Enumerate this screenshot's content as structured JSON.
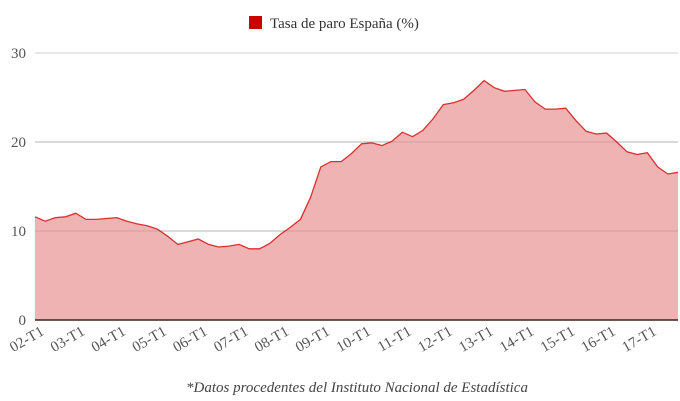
{
  "chart_data": {
    "type": "area",
    "title": "",
    "legend": [
      {
        "label": "Tasa de paro España (%)",
        "color": "#cc0000"
      }
    ],
    "legend_placement": "top-center",
    "xlabel": "",
    "ylabel": "",
    "ylim": [
      0,
      30
    ],
    "yticks": [
      0,
      10,
      20,
      30
    ],
    "grid": true,
    "x_tick_labels": [
      "02-T1",
      "03-T1",
      "04-T1",
      "05-T1",
      "06-T1",
      "07-T1",
      "08-T1",
      "09-T1",
      "10-T1",
      "11-T1",
      "12-T1",
      "13-T1",
      "14-T1",
      "15-T1",
      "16-T1",
      "17-T1"
    ],
    "series": [
      {
        "name": "Tasa de paro España (%)",
        "line_color": "#d93030",
        "fill_color": "#efb3b3",
        "values": [
          11.6,
          11.1,
          11.5,
          11.6,
          12.0,
          11.3,
          11.3,
          11.4,
          11.5,
          11.1,
          10.8,
          10.6,
          10.2,
          9.4,
          8.5,
          8.8,
          9.1,
          8.5,
          8.2,
          8.3,
          8.5,
          8.0,
          8.0,
          8.6,
          9.6,
          10.4,
          11.3,
          13.8,
          17.2,
          17.8,
          17.8,
          18.7,
          19.8,
          19.9,
          19.6,
          20.1,
          21.1,
          20.6,
          21.3,
          22.6,
          24.2,
          24.4,
          24.8,
          25.8,
          26.9,
          26.1,
          25.7,
          25.8,
          25.9,
          24.5,
          23.7,
          23.7,
          23.8,
          22.4,
          21.2,
          20.9,
          21.0,
          20.0,
          18.9,
          18.6,
          18.8,
          17.2,
          16.4,
          16.6
        ]
      }
    ],
    "footnote": "*Datos procedentes del Instituto Nacional de Estadística"
  }
}
